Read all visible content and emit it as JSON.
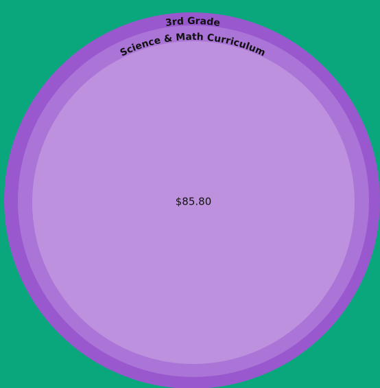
{
  "node": {
    "label_lines": [
      "3rd Grade",
      "Science & Math Curriculum"
    ],
    "value_label": "$85.80"
  }
}
